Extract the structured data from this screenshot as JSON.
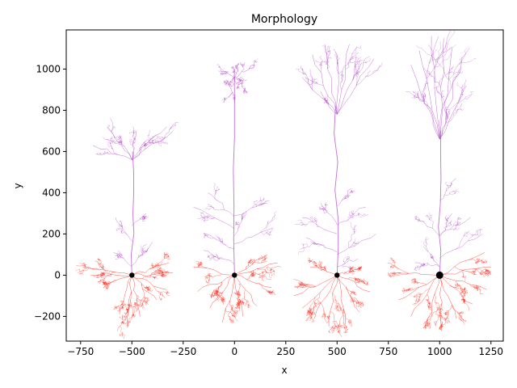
{
  "chart_data": {
    "type": "scatter",
    "title": "Morphology",
    "xlabel": "x",
    "ylabel": "y",
    "xlim": [
      -820,
      1310
    ],
    "ylim": [
      -320,
      1190
    ],
    "xticks": [
      -750,
      -500,
      -250,
      0,
      250,
      500,
      750,
      1000,
      1250
    ],
    "yticks": [
      -200,
      0,
      200,
      400,
      600,
      800,
      1000
    ],
    "xtick_labels": [
      "−750",
      "−500",
      "−250",
      "0",
      "250",
      "500",
      "750",
      "1000",
      "1250"
    ],
    "ytick_labels": [
      "−200",
      "0",
      "200",
      "400",
      "600",
      "800",
      "1000"
    ],
    "grid": false,
    "colors": {
      "apical": "#b040c8",
      "basal": "#ff2010",
      "soma": "#000000"
    },
    "series": [
      {
        "soma": [
          -500,
          0
        ],
        "apical_trunk_top": 600,
        "apical_tuft": [
          [
            -690,
            630
          ],
          [
            -620,
            720
          ],
          [
            -560,
            680
          ],
          [
            -480,
            700
          ],
          [
            -420,
            660
          ],
          [
            -330,
            720
          ],
          [
            -300,
            700
          ]
        ],
        "oblique": [
          [
            -580,
            280
          ],
          [
            -430,
            300
          ],
          [
            -400,
            160
          ],
          [
            -590,
            110
          ]
        ],
        "basal_extent": [
          [
            -740,
            40
          ],
          [
            -700,
            0
          ],
          [
            -640,
            -60
          ],
          [
            -560,
            -190
          ],
          [
            -520,
            -250
          ],
          [
            -460,
            -200
          ],
          [
            -380,
            -120
          ],
          [
            -330,
            -70
          ],
          [
            -300,
            10
          ],
          [
            -320,
            60
          ]
        ]
      },
      {
        "soma": [
          0,
          0
        ],
        "apical_trunk_top": 1000,
        "apical_tuft": [
          [
            -70,
            1000
          ],
          [
            -40,
            920
          ],
          [
            20,
            1030
          ],
          [
            60,
            950
          ],
          [
            100,
            1020
          ],
          [
            60,
            880
          ],
          [
            -30,
            860
          ]
        ],
        "oblique": [
          [
            -130,
            400
          ],
          [
            -200,
            330
          ],
          [
            -140,
            200
          ],
          [
            60,
            300
          ],
          [
            160,
            350
          ],
          [
            190,
            230
          ],
          [
            -150,
            120
          ]
        ],
        "basal_extent": [
          [
            -200,
            40
          ],
          [
            -180,
            -80
          ],
          [
            -120,
            -160
          ],
          [
            -60,
            -230
          ],
          [
            40,
            -200
          ],
          [
            110,
            -150
          ],
          [
            180,
            -60
          ],
          [
            210,
            60
          ],
          [
            160,
            100
          ]
        ]
      },
      {
        "soma": [
          500,
          0
        ],
        "apical_trunk_top": 820,
        "apical_tuft": [
          [
            330,
            960
          ],
          [
            380,
            1070
          ],
          [
            440,
            1120
          ],
          [
            500,
            1070
          ],
          [
            560,
            1120
          ],
          [
            620,
            1030
          ],
          [
            680,
            1050
          ],
          [
            420,
            890
          ]
        ],
        "oblique": [
          [
            330,
            280
          ],
          [
            350,
            180
          ],
          [
            420,
            350
          ],
          [
            570,
            420
          ],
          [
            640,
            330
          ],
          [
            690,
            200
          ],
          [
            600,
            80
          ]
        ],
        "basal_extent": [
          [
            290,
            -100
          ],
          [
            330,
            -160
          ],
          [
            390,
            -210
          ],
          [
            460,
            -250
          ],
          [
            540,
            -240
          ],
          [
            610,
            -180
          ],
          [
            660,
            -80
          ],
          [
            620,
            40
          ],
          [
            370,
            40
          ]
        ]
      },
      {
        "soma": [
          1000,
          0
        ],
        "apical_trunk_top": 700,
        "apical_tuft": [
          [
            860,
            1020
          ],
          [
            900,
            1090
          ],
          [
            960,
            1160
          ],
          [
            1020,
            1150
          ],
          [
            1060,
            1100
          ],
          [
            1110,
            1060
          ],
          [
            1130,
            920
          ],
          [
            920,
            880
          ],
          [
            1050,
            800
          ]
        ],
        "oblique": [
          [
            880,
            280
          ],
          [
            920,
            140
          ],
          [
            1060,
            300
          ],
          [
            1150,
            280
          ],
          [
            1210,
            200
          ],
          [
            1080,
            470
          ],
          [
            880,
            60
          ]
        ],
        "basal_extent": [
          [
            760,
            10
          ],
          [
            800,
            -120
          ],
          [
            860,
            -200
          ],
          [
            930,
            -260
          ],
          [
            1010,
            -270
          ],
          [
            1080,
            -210
          ],
          [
            1160,
            -140
          ],
          [
            1230,
            -70
          ],
          [
            1250,
            40
          ],
          [
            1220,
            110
          ]
        ]
      }
    ]
  }
}
